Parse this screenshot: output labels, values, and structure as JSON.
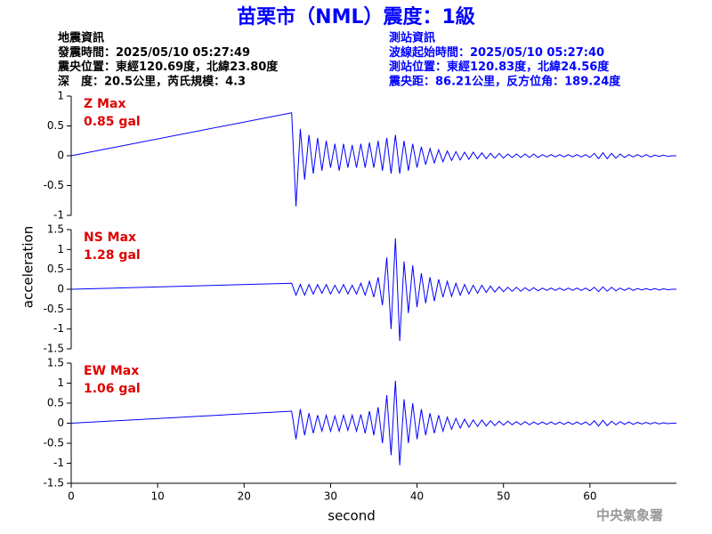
{
  "chart_data": {
    "type": "seismogram",
    "title": "苗栗市（NML）震度：1級",
    "info_left": [
      "地震資訊",
      "發震時間：2025/05/10 05:27:49",
      "震央位置：東經120.69度，北緯23.80度",
      "深　度：20.5公里，芮氏規模：4.3"
    ],
    "info_right": [
      "測站資訊",
      "波線起始時間：2025/05/10 05:27:40",
      "測站位置：東經120.83度，北緯24.56度",
      "震央距：86.21公里，反方位角：189.24度"
    ],
    "xlabel": "second",
    "ylabel": "acceleration",
    "watermark": "中央氣象署",
    "color": "#0000ff",
    "label_color": "#e00000",
    "xlim": [
      0,
      70
    ],
    "xticks": [
      0,
      10,
      20,
      30,
      40,
      50,
      60
    ],
    "x": [
      0,
      25.5,
      26,
      26.5,
      27,
      27.5,
      28,
      28.5,
      29,
      29.5,
      30,
      30.5,
      31,
      31.5,
      32,
      32.5,
      33,
      33.5,
      34,
      34.5,
      35,
      35.5,
      36,
      36.5,
      37,
      37.5,
      38,
      38.5,
      39,
      39.5,
      40,
      40.5,
      41,
      41.5,
      42,
      42.5,
      43,
      43.5,
      44,
      44.5,
      45,
      45.5,
      46,
      46.5,
      47,
      47.5,
      48,
      48.5,
      49,
      49.5,
      50,
      50.5,
      51,
      51.5,
      52,
      52.5,
      53,
      53.5,
      54,
      54.5,
      55,
      55.5,
      56,
      56.5,
      57,
      57.5,
      58,
      58.5,
      59,
      59.5,
      60,
      60.5,
      61,
      61.5,
      62,
      62.5,
      63,
      63.5,
      64,
      64.5,
      65,
      65.5,
      66,
      66.5,
      67,
      67.5,
      68,
      68.5,
      69,
      69.5
    ],
    "panels": [
      {
        "label": "Z Max",
        "max_label": "0.85 gal",
        "ylim": [
          -1,
          1
        ],
        "yticks": [
          -1,
          -0.5,
          0,
          0.5,
          1
        ],
        "values": [
          0,
          0.72,
          -0.85,
          0.45,
          -0.4,
          0.35,
          -0.3,
          0.3,
          -0.25,
          0.25,
          -0.2,
          0.2,
          -0.25,
          0.2,
          -0.2,
          0.18,
          -0.2,
          0.2,
          -0.2,
          0.22,
          -0.2,
          0.25,
          -0.25,
          0.3,
          -0.3,
          0.35,
          -0.3,
          0.25,
          -0.25,
          0.2,
          -0.2,
          0.15,
          -0.15,
          0.12,
          -0.12,
          0.1,
          -0.1,
          0.08,
          -0.08,
          0.07,
          -0.07,
          0.06,
          -0.06,
          0.06,
          -0.05,
          0.05,
          -0.05,
          0.04,
          -0.04,
          0.04,
          -0.04,
          0.03,
          -0.03,
          0.03,
          -0.03,
          0.03,
          -0.03,
          0.03,
          -0.03,
          0.02,
          -0.02,
          0.02,
          -0.02,
          0.02,
          -0.02,
          0.02,
          -0.02,
          0.02,
          -0.02,
          0.02,
          -0.03,
          0.04,
          -0.05,
          0.05,
          -0.05,
          0.04,
          -0.04,
          0.03,
          -0.03,
          0.02,
          -0.02,
          0.02,
          -0.02,
          0.02,
          -0.02,
          0.01,
          -0.01,
          0.01,
          -0.01,
          0
        ]
      },
      {
        "label": "NS Max",
        "max_label": "1.28 gal",
        "ylim": [
          -1.5,
          1.5
        ],
        "yticks": [
          -1.5,
          -1,
          -0.5,
          0,
          0.5,
          1,
          1.5
        ],
        "values": [
          0,
          0.15,
          -0.15,
          0.12,
          -0.15,
          0.12,
          -0.12,
          0.12,
          -0.1,
          0.12,
          -0.12,
          0.1,
          -0.1,
          0.12,
          -0.12,
          0.1,
          -0.12,
          0.15,
          -0.15,
          0.2,
          -0.2,
          0.3,
          -0.4,
          0.8,
          -1.0,
          1.28,
          -1.3,
          0.7,
          -0.6,
          0.6,
          -0.45,
          0.4,
          -0.35,
          0.3,
          -0.3,
          0.25,
          -0.2,
          0.2,
          -0.18,
          0.15,
          -0.15,
          0.12,
          -0.12,
          0.1,
          -0.1,
          0.1,
          -0.08,
          0.08,
          -0.07,
          0.06,
          -0.06,
          0.05,
          -0.05,
          0.05,
          -0.05,
          0.04,
          -0.04,
          0.04,
          -0.04,
          0.03,
          -0.03,
          0.03,
          -0.03,
          0.03,
          -0.03,
          0.03,
          -0.03,
          0.03,
          -0.03,
          0.03,
          -0.04,
          0.05,
          -0.06,
          0.06,
          -0.05,
          0.05,
          -0.04,
          0.03,
          -0.03,
          0.03,
          -0.03,
          0.02,
          -0.02,
          0.02,
          -0.02,
          0.02,
          -0.02,
          0.01,
          -0.01,
          0
        ]
      },
      {
        "label": "EW Max",
        "max_label": "1.06 gal",
        "ylim": [
          -1.5,
          1.5
        ],
        "yticks": [
          -1.5,
          -1,
          -0.5,
          0,
          0.5,
          1,
          1.5
        ],
        "values": [
          0,
          0.3,
          -0.4,
          0.35,
          -0.3,
          0.25,
          -0.25,
          0.2,
          -0.2,
          0.2,
          -0.2,
          0.18,
          -0.2,
          0.2,
          -0.18,
          0.2,
          -0.2,
          0.22,
          -0.25,
          0.3,
          -0.3,
          0.4,
          -0.5,
          0.7,
          -0.8,
          1.06,
          -1.05,
          0.6,
          -0.5,
          0.5,
          -0.4,
          0.35,
          -0.3,
          0.25,
          -0.25,
          0.2,
          -0.2,
          0.15,
          -0.15,
          0.12,
          -0.12,
          0.1,
          -0.1,
          0.08,
          -0.08,
          0.08,
          -0.07,
          0.06,
          -0.06,
          0.05,
          -0.05,
          0.05,
          -0.04,
          0.04,
          -0.04,
          0.04,
          -0.04,
          0.03,
          -0.03,
          0.03,
          -0.03,
          0.03,
          -0.03,
          0.03,
          -0.03,
          0.03,
          -0.03,
          0.03,
          -0.03,
          0.03,
          -0.05,
          0.06,
          -0.07,
          0.07,
          -0.06,
          0.05,
          -0.04,
          0.04,
          -0.03,
          0.03,
          -0.03,
          0.02,
          -0.02,
          0.02,
          -0.02,
          0.02,
          -0.02,
          0.01,
          -0.01,
          0
        ]
      }
    ]
  }
}
